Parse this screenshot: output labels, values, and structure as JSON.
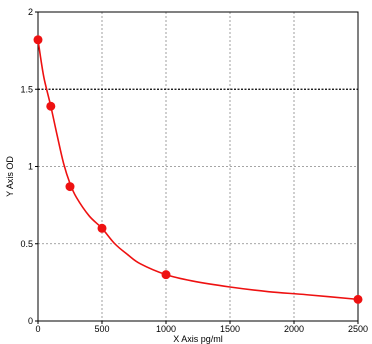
{
  "chart_data": {
    "type": "scatter",
    "title": "",
    "xlabel": "X Axis pg/ml",
    "ylabel": "Y Axis OD",
    "xlim": [
      0,
      2500
    ],
    "ylim": [
      0,
      2
    ],
    "x_ticks": [
      "0",
      "500",
      "1000",
      "1500",
      "2000",
      "2500"
    ],
    "y_ticks": [
      "0",
      "0.5",
      "1",
      "1.5",
      "2"
    ],
    "grid": true,
    "legend": "none",
    "series": [
      {
        "x": [
          0,
          100,
          250,
          500,
          1000,
          2500
        ],
        "y": [
          1.82,
          1.39,
          0.87,
          0.6,
          0.3,
          0.14
        ]
      }
    ],
    "fit_curve": {
      "x": [
        0,
        25,
        50,
        100,
        150,
        200,
        250,
        300,
        400,
        500,
        600,
        700,
        800,
        1000,
        1200,
        1500,
        1800,
        2100,
        2500
      ],
      "y": [
        1.82,
        1.68,
        1.56,
        1.39,
        1.2,
        1.02,
        0.89,
        0.8,
        0.68,
        0.6,
        0.5,
        0.43,
        0.37,
        0.3,
        0.26,
        0.22,
        0.19,
        0.17,
        0.14
      ]
    },
    "reference_line": {
      "y": 1.5
    },
    "colors": {
      "marker": "#ee1111",
      "curve": "#ee1111",
      "grid": "#888888",
      "axis": "#000000"
    }
  }
}
